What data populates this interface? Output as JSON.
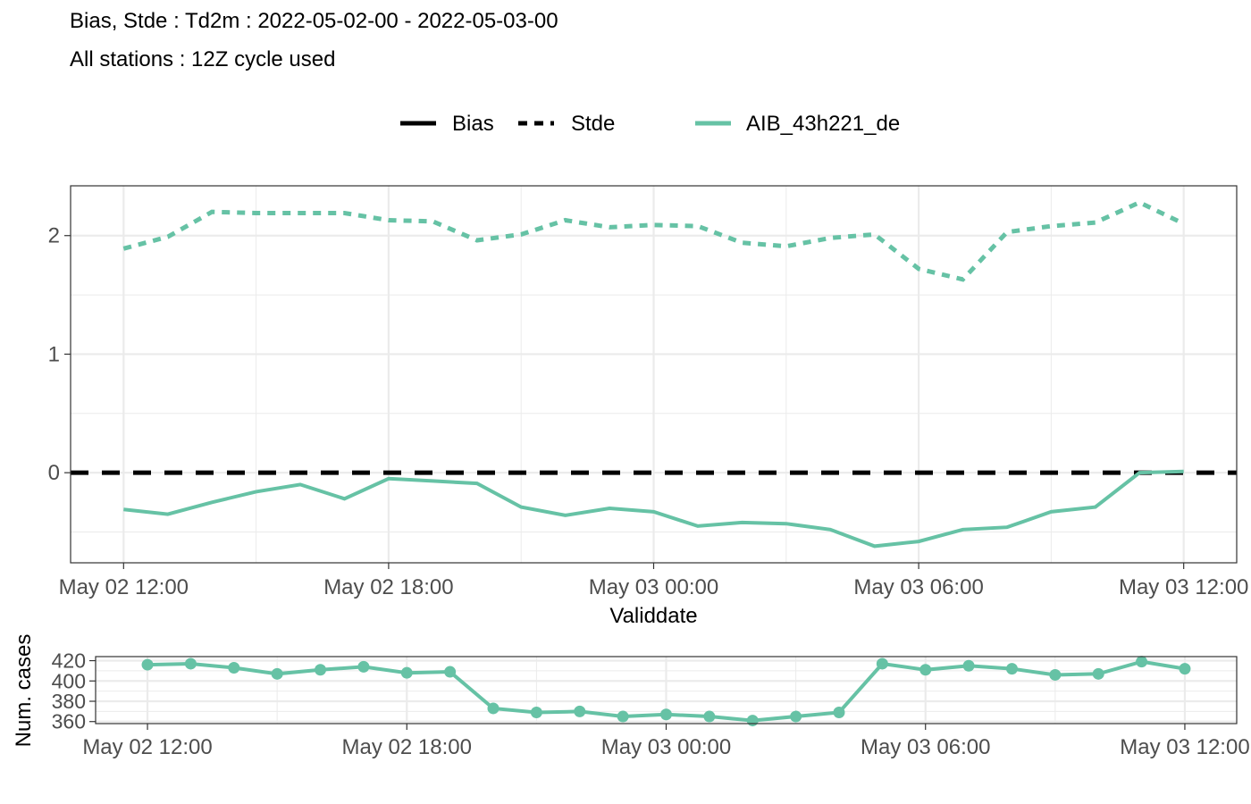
{
  "title": "Bias, Stde : Td2m : 2022-05-02-00 - 2022-05-03-00",
  "subtitle": "All stations : 12Z cycle used",
  "legend": {
    "linetype_items": [
      "Bias",
      "Stde"
    ],
    "colour_items": [
      "AIB_43h221_de"
    ]
  },
  "colors": {
    "series": "#66c2a5",
    "reference": "#000000",
    "grid": "#ebebeb",
    "panel_border": "#333333"
  },
  "chart_data": [
    {
      "type": "line",
      "xlabel": "Validdate",
      "ylabel": "",
      "x_tick_labels": [
        "May 02 12:00",
        "May 02 18:00",
        "May 03 00:00",
        "May 03 06:00",
        "May 03 12:00"
      ],
      "x_tick_hours": [
        0,
        6,
        12,
        18,
        24
      ],
      "xlim_hours": [
        -1.2,
        25.2
      ],
      "y_ticks": [
        0,
        1,
        2
      ],
      "ylim": [
        -0.76,
        2.42
      ],
      "grid": true,
      "legend_position": "top",
      "x_hours": [
        0,
        1,
        2,
        3,
        4,
        5,
        6,
        7,
        8,
        9,
        10,
        11,
        12,
        13,
        14,
        15,
        16,
        17,
        18,
        19,
        20,
        21,
        22,
        23,
        24
      ],
      "series": [
        {
          "name": "AIB_43h221_de",
          "linetype": "Stde",
          "values": [
            1.89,
            1.99,
            2.2,
            2.19,
            2.19,
            2.19,
            2.13,
            2.12,
            1.96,
            2.01,
            2.13,
            2.07,
            2.09,
            2.08,
            1.94,
            1.91,
            1.98,
            2.01,
            1.72,
            1.63,
            2.03,
            2.08,
            2.11,
            2.28,
            2.1
          ]
        },
        {
          "name": "AIB_43h221_de",
          "linetype": "Bias",
          "values": [
            -0.31,
            -0.35,
            -0.25,
            -0.16,
            -0.1,
            -0.22,
            -0.05,
            -0.07,
            -0.09,
            -0.29,
            -0.36,
            -0.3,
            -0.33,
            -0.45,
            -0.42,
            -0.43,
            -0.48,
            -0.62,
            -0.58,
            -0.48,
            -0.46,
            -0.33,
            -0.29,
            0.0,
            0.01
          ]
        }
      ],
      "reference_lines": [
        {
          "label": "Bias",
          "y": 0
        }
      ]
    },
    {
      "type": "line",
      "xlabel": "",
      "ylabel": "Num. cases",
      "x_tick_labels": [
        "May 02 12:00",
        "May 02 18:00",
        "May 03 00:00",
        "May 03 06:00",
        "May 03 12:00"
      ],
      "x_tick_hours": [
        0,
        6,
        12,
        18,
        24
      ],
      "xlim_hours": [
        -1.2,
        25.2
      ],
      "y_ticks": [
        360,
        380,
        400,
        420
      ],
      "ylim": [
        358,
        424
      ],
      "grid": true,
      "markers": true,
      "x_hours": [
        0,
        1,
        2,
        3,
        4,
        5,
        6,
        7,
        8,
        9,
        10,
        11,
        12,
        13,
        14,
        15,
        16,
        17,
        18,
        19,
        20,
        21,
        22,
        23,
        24
      ],
      "series": [
        {
          "name": "AIB_43h221_de",
          "values": [
            416,
            417,
            413,
            407,
            411,
            414,
            408,
            409,
            373,
            369,
            370,
            365,
            367,
            365,
            361,
            365,
            369,
            417,
            411,
            415,
            412,
            406,
            407,
            419,
            412
          ]
        }
      ]
    }
  ]
}
